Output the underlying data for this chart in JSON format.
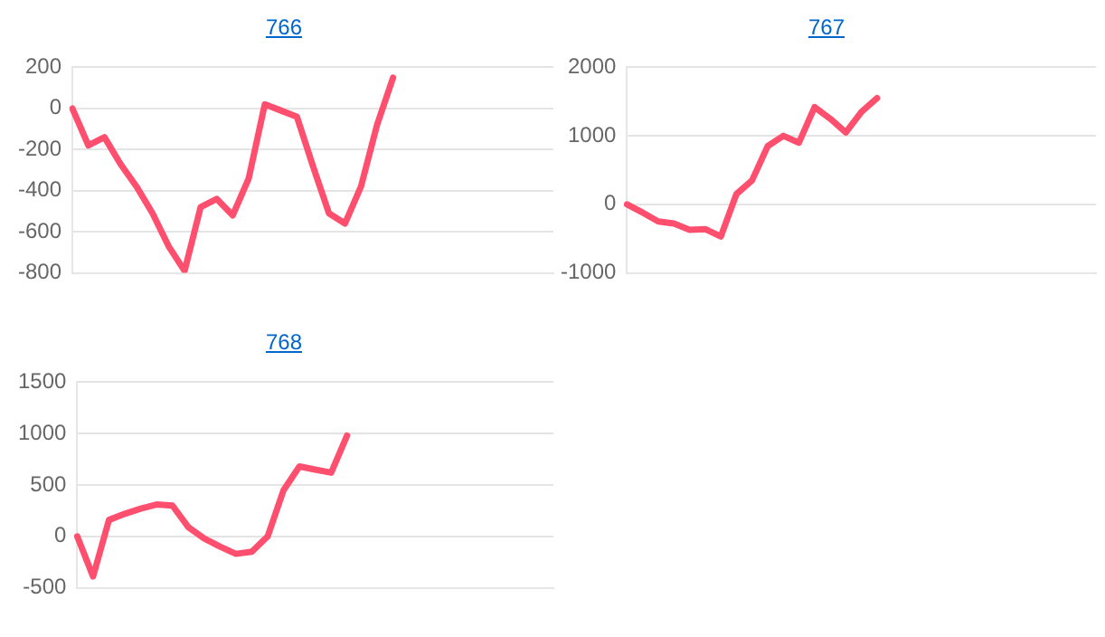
{
  "chart_data": [
    {
      "type": "line",
      "title": "766",
      "categories": [
        null,
        null,
        null,
        null,
        null,
        null,
        null,
        null,
        null,
        null,
        null,
        null,
        null,
        null,
        null,
        null,
        null,
        null,
        null,
        null,
        null,
        null,
        null,
        null,
        null,
        null,
        null,
        null,
        null,
        null,
        null
      ],
      "series": [
        {
          "color": "#ff4f6e",
          "values": [
            0,
            -180,
            -140,
            -270,
            -380,
            -510,
            -670,
            -790,
            -480,
            -440,
            -520,
            -340,
            20,
            -10,
            -40,
            -280,
            -510,
            -560,
            -380,
            -80,
            150,
            null,
            null,
            null,
            null,
            null,
            null,
            null,
            null,
            null,
            null
          ]
        }
      ],
      "ylim": [
        -800,
        200
      ],
      "yticks": [
        -800,
        -600,
        -400,
        -200,
        0,
        200
      ],
      "grid": "y",
      "legend": false,
      "marker": "none",
      "line_style": "solid",
      "tick_labels": "y"
    },
    {
      "type": "line",
      "title": "767",
      "categories": [
        null,
        null,
        null,
        null,
        null,
        null,
        null,
        null,
        null,
        null,
        null,
        null,
        null,
        null,
        null,
        null,
        null,
        null,
        null,
        null,
        null,
        null,
        null,
        null,
        null,
        null,
        null,
        null,
        null,
        null,
        null
      ],
      "series": [
        {
          "color": "#ff4f6e",
          "values": [
            0,
            -120,
            -250,
            -280,
            -370,
            -360,
            -470,
            150,
            350,
            850,
            1000,
            900,
            1420,
            1250,
            1050,
            1350,
            1550,
            null,
            null,
            null,
            null,
            null,
            null,
            null,
            null,
            null,
            null,
            null,
            null,
            null,
            null
          ]
        }
      ],
      "ylim": [
        -1000,
        2000
      ],
      "yticks": [
        -1000,
        0,
        1000,
        2000
      ],
      "grid": "y",
      "legend": false,
      "marker": "none",
      "line_style": "solid",
      "tick_labels": "y"
    },
    {
      "type": "line",
      "title": "768",
      "categories": [
        null,
        null,
        null,
        null,
        null,
        null,
        null,
        null,
        null,
        null,
        null,
        null,
        null,
        null,
        null,
        null,
        null,
        null,
        null,
        null,
        null,
        null,
        null,
        null,
        null,
        null,
        null,
        null,
        null,
        null,
        null
      ],
      "series": [
        {
          "color": "#ff4f6e",
          "values": [
            0,
            -390,
            160,
            220,
            270,
            310,
            300,
            90,
            -20,
            -100,
            -170,
            -150,
            0,
            450,
            680,
            650,
            620,
            980,
            null,
            null,
            null,
            null,
            null,
            null,
            null,
            null,
            null,
            null,
            null,
            null,
            null
          ]
        }
      ],
      "ylim": [
        -500,
        1500
      ],
      "yticks": [
        -500,
        0,
        500,
        1000,
        1500
      ],
      "grid": "y",
      "legend": false,
      "marker": "none",
      "line_style": "solid",
      "tick_labels": "y"
    }
  ]
}
